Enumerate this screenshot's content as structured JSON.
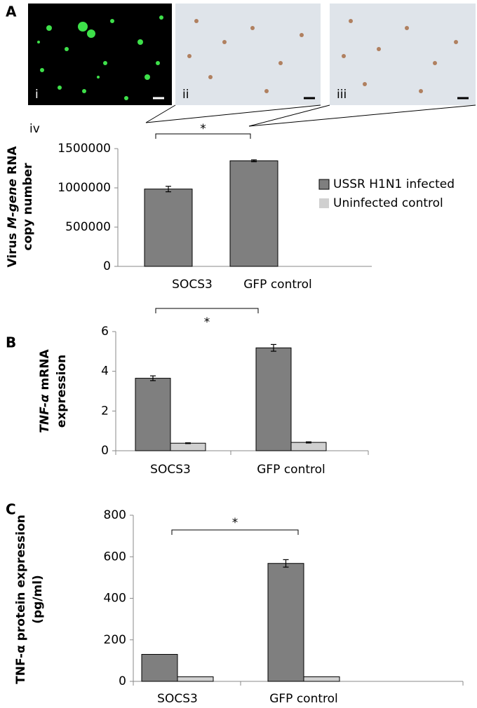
{
  "images": [
    {
      "label": "i"
    },
    {
      "label": "ii"
    },
    {
      "label": "iii"
    }
  ],
  "chart_data": [
    {
      "type": "bar",
      "panel_label": "A",
      "inset_label": "iv",
      "ylabel": [
        [
          {
            "text": "Virus "
          },
          {
            "text": "M-gene",
            "italic": true
          },
          {
            "text": " RNA"
          }
        ],
        [
          {
            "text": "copy number"
          }
        ]
      ],
      "categories": [
        "SOCS3",
        "GFP control"
      ],
      "series": [
        {
          "name": "USSR H1N1 infected",
          "color": "#7f7f7f",
          "values": [
            985000,
            1345000
          ],
          "errors": [
            35000,
            12000
          ]
        },
        {
          "name": "Uninfected control",
          "color": "#d0d0d0",
          "values": [
            null,
            null
          ],
          "errors": [
            null,
            null
          ]
        }
      ],
      "ylim": [
        0,
        1500000
      ],
      "yticks": [
        0,
        500000,
        1000000,
        1500000
      ],
      "annotations": [
        "*"
      ],
      "legend": "right"
    },
    {
      "type": "bar",
      "panel_label": "B",
      "ylabel": [
        [
          {
            "text": "TNF-α",
            "italic": true
          },
          {
            "text": " mRNA"
          }
        ],
        [
          {
            "text": "expression"
          }
        ]
      ],
      "categories": [
        "SOCS3",
        "GFP control"
      ],
      "series": [
        {
          "name": "USSR H1N1 infected",
          "color": "#7f7f7f",
          "values": [
            3.65,
            5.18
          ],
          "errors": [
            0.12,
            0.17
          ]
        },
        {
          "name": "Uninfected control",
          "color": "#d0d0d0",
          "values": [
            0.38,
            0.42
          ],
          "errors": [
            0.02,
            0.03
          ]
        }
      ],
      "ylim": [
        0,
        6
      ],
      "yticks": [
        0,
        2,
        4,
        6
      ],
      "annotations": [
        "*"
      ]
    },
    {
      "type": "bar",
      "panel_label": "C",
      "ylabel": [
        [
          {
            "text": "TNF-α protein expression"
          }
        ],
        [
          {
            "text": "(pg/ml)"
          }
        ]
      ],
      "categories": [
        "SOCS3",
        "GFP control"
      ],
      "series": [
        {
          "name": "USSR H1N1 infected",
          "color": "#7f7f7f",
          "values": [
            130,
            568
          ],
          "errors": [
            null,
            18
          ]
        },
        {
          "name": "Uninfected control",
          "color": "#d0d0d0",
          "values": [
            22,
            22
          ],
          "errors": [
            null,
            null
          ]
        }
      ],
      "ylim": [
        0,
        800
      ],
      "yticks": [
        0,
        200,
        400,
        600,
        800
      ],
      "annotations": [
        "*"
      ]
    }
  ]
}
